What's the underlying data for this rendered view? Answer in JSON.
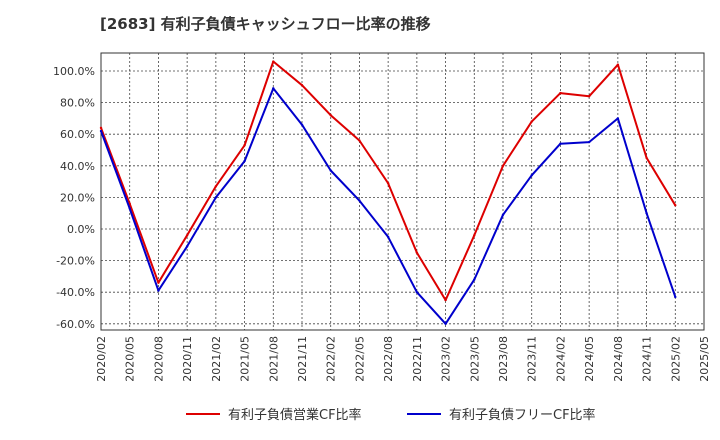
{
  "chart_data": {
    "type": "line",
    "title": "[2683]  有利子負債キャッシュフロー比率の推移",
    "x": [
      "2020/02",
      "2020/05",
      "2020/08",
      "2020/11",
      "2021/02",
      "2021/05",
      "2021/08",
      "2021/11",
      "2022/02",
      "2022/05",
      "2022/08",
      "2022/11",
      "2023/02",
      "2023/05",
      "2023/08",
      "2023/11",
      "2024/02",
      "2024/05",
      "2024/08",
      "2024/11",
      "2025/02"
    ],
    "xticks": [
      "2020/02",
      "2020/05",
      "2020/08",
      "2020/11",
      "2021/02",
      "2021/05",
      "2021/08",
      "2021/11",
      "2022/02",
      "2022/05",
      "2022/08",
      "2022/11",
      "2023/02",
      "2023/05",
      "2023/08",
      "2023/11",
      "2024/02",
      "2024/05",
      "2024/08",
      "2024/11",
      "2025/02",
      "2025/05"
    ],
    "yticks": [
      "100.0%",
      "80.0%",
      "60.0%",
      "40.0%",
      "20.0%",
      "0.0%",
      "-20.0%",
      "-40.0%",
      "-60.0%"
    ],
    "ylim": [
      -64,
      112
    ],
    "grid": true,
    "legend_position": "bottom",
    "series": [
      {
        "name": "有利子負債営業CF比率",
        "color": "#dd0000",
        "values": [
          64,
          16,
          -34,
          -4,
          27,
          53,
          106,
          91,
          72,
          56,
          29,
          -15,
          -45,
          -4,
          40,
          68,
          86,
          84,
          104,
          45,
          15
        ]
      },
      {
        "name": "有利子負債フリーCF比率",
        "color": "#0000cc",
        "values": [
          62,
          13,
          -39,
          -11,
          20,
          43,
          89,
          66,
          37,
          18,
          -5,
          -40,
          -60,
          -32,
          9,
          34,
          54,
          55,
          70,
          10,
          -43
        ]
      }
    ]
  }
}
